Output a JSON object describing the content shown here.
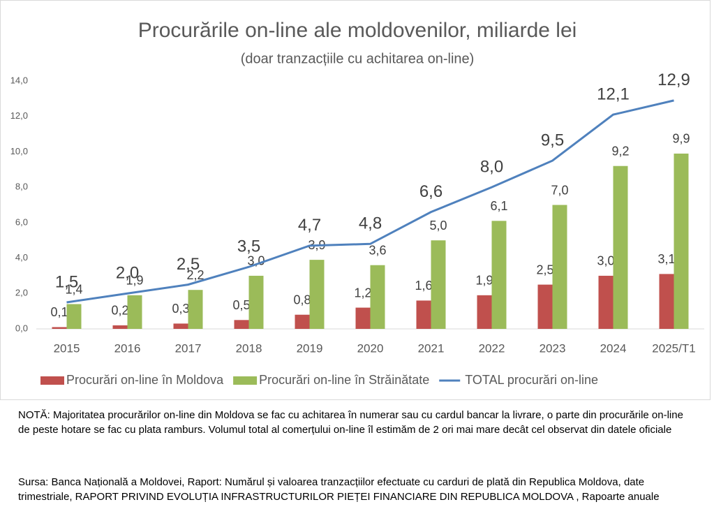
{
  "chart_data": {
    "type": "bar",
    "title": "Procurările on-line ale moldovenilor, miliarde lei",
    "subtitle": "(doar tranzacțiile cu achitarea on-line)",
    "categories": [
      "2015",
      "2016",
      "2017",
      "2018",
      "2019",
      "2020",
      "2021",
      "2022",
      "2023",
      "2024",
      "2025/T1"
    ],
    "series": [
      {
        "name": "Procurări on-line în Moldova",
        "type": "bar",
        "color": "#c0504d",
        "values": [
          0.1,
          0.2,
          0.3,
          0.5,
          0.8,
          1.2,
          1.6,
          1.9,
          2.5,
          3.0,
          3.1
        ],
        "value_labels": [
          "0,1",
          "0,2",
          "0,3",
          "0,5",
          "0,8",
          "1,2",
          "1,6",
          "1,9",
          "2,5",
          "3,0",
          "3,1"
        ]
      },
      {
        "name": "Procurări on-line în Străinătate",
        "type": "bar",
        "color": "#9bbb59",
        "values": [
          1.4,
          1.9,
          2.2,
          3.0,
          3.9,
          3.6,
          5.0,
          6.1,
          7.0,
          9.2,
          9.9
        ],
        "value_labels": [
          "1,4",
          "1,9",
          "2,2",
          "3,0",
          "3,9",
          "3,6",
          "5,0",
          "6,1",
          "7,0",
          "9,2",
          "9,9"
        ]
      },
      {
        "name": "TOTAL procurări on-line",
        "type": "line",
        "color": "#4f81bd",
        "values": [
          1.5,
          2.0,
          2.5,
          3.5,
          4.7,
          4.8,
          6.6,
          8.0,
          9.5,
          12.1,
          12.9
        ],
        "value_labels": [
          "1,5",
          "2,0",
          "2,5",
          "3,5",
          "4,7",
          "4,8",
          "6,6",
          "8,0",
          "9,5",
          "12,1",
          "12,9"
        ]
      }
    ],
    "ylim": [
      0,
      14
    ],
    "yticks": [
      {
        "value": 0,
        "label": "0,0"
      },
      {
        "value": 2,
        "label": "2,0"
      },
      {
        "value": 4,
        "label": "4,0"
      },
      {
        "value": 6,
        "label": "6,0"
      },
      {
        "value": 8,
        "label": "8,0"
      },
      {
        "value": 10,
        "label": "10,0"
      },
      {
        "value": 12,
        "label": "12,0"
      },
      {
        "value": 14,
        "label": "14,0"
      }
    ],
    "grid": false,
    "legend": "bottom"
  },
  "note": "NOTĂ: Majoritatea procurărilor on-line din Moldova se fac cu achitarea în numerar sau cu cardul bancar la livrare, o parte din procurările on-line de peste hotare se fac cu plata ramburs. Volumul total al comerțului on-line îl estimăm de 2 ori mai mare decât cel observat din datele oficiale",
  "source": "Sursa: Banca Națională a Moldovei, Raport: Numărul și valoarea tranzacțiilor efectuate cu carduri de plată din Republica Moldova, date trimestriale, RAPORT PRIVIND EVOLUȚIA INFRASTRUCTURILOR PIEȚEI FINANCIARE DIN REPUBLICA MOLDOVA , Rapoarte anuale"
}
